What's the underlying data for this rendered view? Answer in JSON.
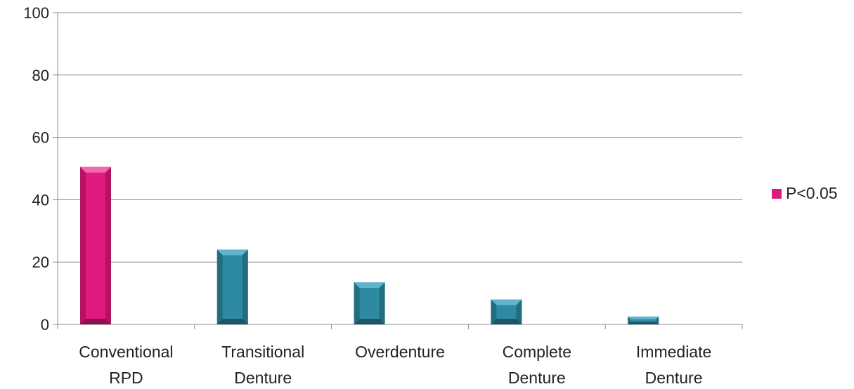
{
  "chart_data": {
    "type": "bar",
    "categories": [
      [
        "Conventional",
        "RPD"
      ],
      [
        "Transitional",
        "Denture"
      ],
      [
        "Overdenture"
      ],
      [
        "Complete",
        "Denture"
      ],
      [
        "Immediate",
        "Denture"
      ]
    ],
    "values": [
      50.5,
      24,
      13.5,
      8,
      2.5
    ],
    "highlight_index": 0,
    "ylim": [
      0,
      100
    ],
    "yticks": [
      "0",
      "20",
      "40",
      "60",
      "80",
      "100"
    ],
    "grid": true,
    "legend": {
      "label": "P<0.05",
      "placement": "right"
    },
    "colors": {
      "highlight": "#e0197d",
      "highlight_dark": "#8e0f4e",
      "highlight_light": "#f268ad",
      "bar": "#2e8aa3",
      "bar_dark": "#1b5566",
      "bar_light": "#5fb6cc",
      "grid": "#8c8c8c",
      "axis": "#8c8c8c"
    }
  }
}
